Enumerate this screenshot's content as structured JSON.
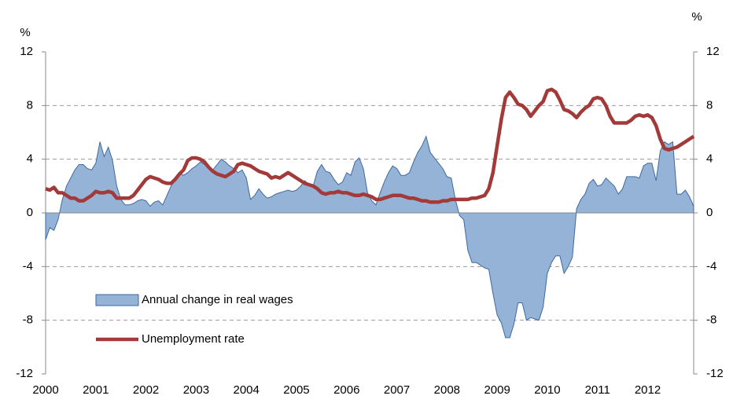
{
  "chart_data": {
    "type": "area_line",
    "y_label": "%",
    "y2_label": "%",
    "ylim": [
      -12,
      12
    ],
    "yticks": [
      -12,
      -8,
      -4,
      0,
      4,
      8,
      12
    ],
    "y2lim": [
      -12,
      12
    ],
    "y2ticks": [
      -12,
      -8,
      -4,
      0,
      4,
      8,
      12
    ],
    "grid": true,
    "legend": "lower left",
    "categories": [
      "2000",
      null,
      null,
      null,
      null,
      null,
      null,
      null,
      null,
      null,
      null,
      null,
      "2001",
      null,
      null,
      null,
      null,
      null,
      null,
      null,
      null,
      null,
      null,
      null,
      "2002",
      null,
      null,
      null,
      null,
      null,
      null,
      null,
      null,
      null,
      null,
      null,
      "2003",
      null,
      null,
      null,
      null,
      null,
      null,
      null,
      null,
      null,
      null,
      null,
      "2004",
      null,
      null,
      null,
      null,
      null,
      null,
      null,
      null,
      null,
      null,
      null,
      "2005",
      null,
      null,
      null,
      null,
      null,
      null,
      null,
      null,
      null,
      null,
      null,
      "2006",
      null,
      null,
      null,
      null,
      null,
      null,
      null,
      null,
      null,
      null,
      null,
      "2007",
      null,
      null,
      null,
      null,
      null,
      null,
      null,
      null,
      null,
      null,
      null,
      "2008",
      null,
      null,
      null,
      null,
      null,
      null,
      null,
      null,
      null,
      null,
      null,
      "2009",
      null,
      null,
      null,
      null,
      null,
      null,
      null,
      null,
      null,
      null,
      null,
      "2010",
      null,
      null,
      null,
      null,
      null,
      null,
      null,
      null,
      null,
      null,
      null,
      "2011",
      null,
      null,
      null,
      null,
      null,
      null,
      null,
      null,
      null,
      null,
      null,
      "2012",
      null,
      null,
      null,
      null,
      null,
      null,
      null,
      null,
      null,
      null,
      null
    ],
    "series": [
      {
        "name": "Annual change in real wages",
        "kind": "area",
        "color": "#95b3d7",
        "stroke": "#3d6a9e",
        "values": [
          -2.0,
          -1.1,
          -1.3,
          -0.5,
          1.0,
          2.0,
          2.6,
          3.2,
          3.6,
          3.6,
          3.3,
          3.2,
          3.7,
          5.3,
          4.2,
          4.9,
          3.9,
          2.0,
          1.0,
          0.6,
          0.6,
          0.7,
          0.9,
          1.0,
          0.9,
          0.5,
          0.8,
          0.9,
          0.6,
          1.3,
          2.0,
          2.5,
          3.0,
          2.8,
          3.0,
          3.3,
          3.5,
          3.8,
          3.6,
          3.3,
          3.2,
          3.6,
          4.0,
          3.8,
          3.5,
          3.3,
          3.0,
          3.2,
          2.6,
          1.0,
          1.3,
          1.8,
          1.4,
          1.1,
          1.2,
          1.4,
          1.5,
          1.6,
          1.7,
          1.6,
          1.7,
          2.0,
          2.4,
          2.1,
          2.0,
          3.1,
          3.6,
          3.1,
          3.0,
          2.5,
          2.1,
          2.3,
          3.0,
          2.8,
          3.8,
          4.1,
          3.3,
          1.5,
          0.9,
          0.6,
          1.5,
          2.3,
          3.0,
          3.5,
          3.3,
          2.8,
          2.8,
          3.0,
          3.8,
          4.5,
          5.0,
          5.7,
          4.5,
          4.1,
          3.7,
          3.3,
          2.7,
          2.6,
          1.0,
          -0.2,
          -0.5,
          -2.8,
          -3.7,
          -3.7,
          -3.9,
          -4.1,
          -4.2,
          -6.0,
          -7.6,
          -8.2,
          -9.3,
          -9.3,
          -8.3,
          -6.7,
          -6.7,
          -8.0,
          -7.8,
          -7.9,
          -8.0,
          -7.0,
          -4.5,
          -3.7,
          -3.2,
          -3.2,
          -4.5,
          -4.0,
          -3.3,
          0.3,
          1.0,
          1.4,
          2.2,
          2.5,
          2.0,
          2.1,
          2.6,
          2.3,
          2.0,
          1.4,
          1.8,
          2.7,
          2.7,
          2.7,
          2.6,
          3.5,
          3.7,
          3.7,
          2.4,
          4.6,
          5.3,
          5.1,
          5.3,
          1.4,
          1.4,
          1.7,
          1.2,
          0.5
        ]
      },
      {
        "name": "Unemployment rate",
        "kind": "line",
        "color": "#a33a3a",
        "axis": "y2",
        "values": [
          1.8,
          1.7,
          1.9,
          1.5,
          1.5,
          1.3,
          1.1,
          1.1,
          0.9,
          0.9,
          1.1,
          1.3,
          1.6,
          1.5,
          1.5,
          1.6,
          1.5,
          1.1,
          1.1,
          1.1,
          1.1,
          1.3,
          1.7,
          2.1,
          2.5,
          2.7,
          2.6,
          2.5,
          2.3,
          2.2,
          2.2,
          2.5,
          2.9,
          3.2,
          3.9,
          4.1,
          4.1,
          4.0,
          3.8,
          3.4,
          3.1,
          2.9,
          2.8,
          2.7,
          2.9,
          3.1,
          3.6,
          3.7,
          3.6,
          3.5,
          3.3,
          3.1,
          3.0,
          2.9,
          2.6,
          2.7,
          2.6,
          2.8,
          3.0,
          2.8,
          2.6,
          2.4,
          2.2,
          2.1,
          2.0,
          1.8,
          1.5,
          1.4,
          1.5,
          1.5,
          1.6,
          1.5,
          1.5,
          1.4,
          1.3,
          1.3,
          1.4,
          1.3,
          1.2,
          1.0,
          1.0,
          1.1,
          1.2,
          1.3,
          1.3,
          1.3,
          1.2,
          1.1,
          1.1,
          1.0,
          0.9,
          0.9,
          0.8,
          0.8,
          0.8,
          0.9,
          0.9,
          1.0,
          1.0,
          1.0,
          1.0,
          1.0,
          1.1,
          1.1,
          1.2,
          1.3,
          1.8,
          3.0,
          5.0,
          7.0,
          8.6,
          9.0,
          8.6,
          8.1,
          8.0,
          7.7,
          7.2,
          7.6,
          8.0,
          8.3,
          9.1,
          9.2,
          9.0,
          8.4,
          7.7,
          7.6,
          7.4,
          7.1,
          7.5,
          7.8,
          8.0,
          8.5,
          8.6,
          8.5,
          8.0,
          7.2,
          6.7,
          6.7,
          6.7,
          6.7,
          6.9,
          7.2,
          7.3,
          7.2,
          7.3,
          7.1,
          6.5,
          5.5,
          4.8,
          4.7,
          4.8,
          4.9,
          5.1,
          5.3,
          5.5,
          5.7
        ]
      }
    ]
  }
}
